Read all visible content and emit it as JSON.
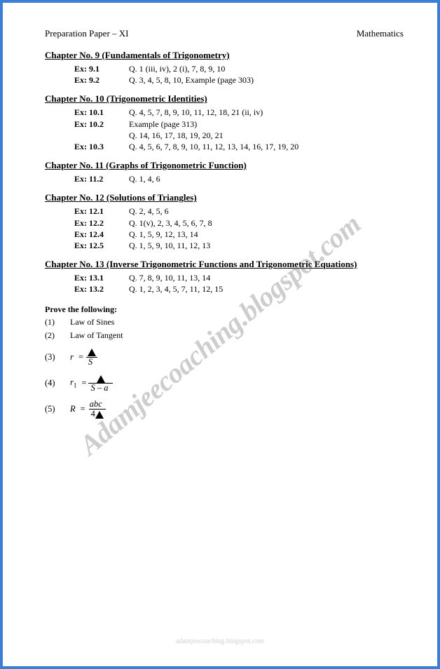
{
  "header": {
    "left": "Preparation Paper – XI",
    "right": "Mathematics"
  },
  "chapters": [
    {
      "title": "Chapter No.  9 (Fundamentals of Trigonometry)",
      "rows": [
        {
          "label": "Ex: 9.1",
          "content": "Q. 1 (iii, iv), 2 (i), 7, 8, 9, 10"
        },
        {
          "label": "Ex: 9.2",
          "content": "Q. 3, 4, 5, 8, 10, Example (page 303)"
        }
      ]
    },
    {
      "title": "Chapter No. 10 (Trigonometric Identities)",
      "rows": [
        {
          "label": "Ex: 10.1",
          "content": "Q. 4, 5, 7, 8, 9, 10, 11, 12, 18, 21 (ii, iv)"
        },
        {
          "label": "Ex: 10.2",
          "content": "Example (page 313)"
        },
        {
          "label": "",
          "content": "Q. 14, 16, 17, 18, 19, 20, 21"
        },
        {
          "label": "Ex: 10.3",
          "content": "Q. 4, 5, 6, 7, 8, 9, 10, 11, 12, 13, 14, 16, 17, 19, 20"
        }
      ]
    },
    {
      "title": "Chapter No. 11 (Graphs of Trigonometric Function)",
      "rows": [
        {
          "label": "Ex: 11.2",
          "content": "Q. 1, 4, 6"
        }
      ]
    },
    {
      "title": "Chapter No. 12 (Solutions of Triangles)",
      "rows": [
        {
          "label": "Ex: 12.1",
          "content": "Q. 2,  4, 5, 6"
        },
        {
          "label": "Ex: 12.2",
          "content": "Q. 1(v), 2, 3, 4, 5, 6, 7, 8"
        },
        {
          "label": "Ex: 12.4",
          "content": "Q. 1, 5, 9, 12, 13, 14"
        },
        {
          "label": "Ex: 12.5",
          "content": "Q. 1, 5, 9, 10, 11, 12, 13"
        }
      ]
    },
    {
      "title": "Chapter No. 13   (Inverse Trigonometric Functions and Trigonometric Equations)",
      "rows": [
        {
          "label": "Ex: 13.1",
          "content": "Q. 7, 8, 9, 10, 11, 13, 14"
        },
        {
          "label": "Ex: 13.2",
          "content": "Q. 1, 2, 3, 4, 5, 7, 11, 12, 15"
        }
      ]
    }
  ],
  "prove": {
    "title": "Prove the following:",
    "simple": [
      {
        "num": "(1)",
        "text": "Law of Sines"
      },
      {
        "num": "(2)",
        "text": "Law of Tangent"
      }
    ],
    "formulas": {
      "f3": {
        "num": "(3)",
        "var": "r",
        "den": "S"
      },
      "f4": {
        "num": "(4)",
        "var": "r",
        "sub": "1",
        "den": "S – a"
      },
      "f5": {
        "num": "(5)",
        "var": "R",
        "num_text": "abc",
        "den_prefix": "4"
      }
    }
  },
  "watermark": "Adamjeecoaching.blogspot.com",
  "footer": "adamjeecoaching.blogspot.com",
  "colors": {
    "border": "#3b7fd4",
    "text": "#000000",
    "watermark": "rgba(100,100,100,0.32)"
  }
}
